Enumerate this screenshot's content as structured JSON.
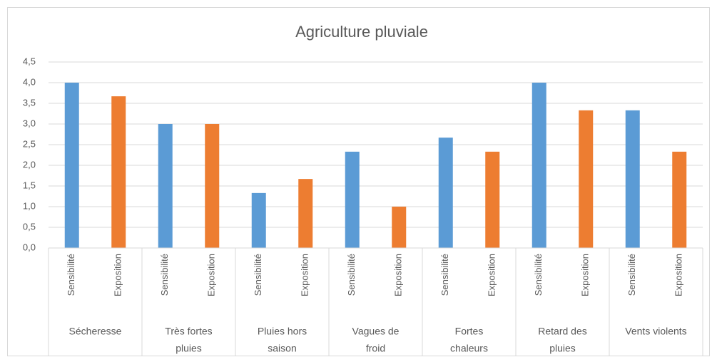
{
  "chart_data": {
    "type": "bar",
    "title": "Agriculture pluviale",
    "groups": [
      [
        "Sécheresse"
      ],
      [
        "Très fortes",
        "pluies"
      ],
      [
        "Pluies hors",
        "saison"
      ],
      [
        "Vagues de",
        "froid"
      ],
      [
        "Fortes",
        "chaleurs"
      ],
      [
        "Retard des",
        "pluies"
      ],
      [
        "Vents violents"
      ]
    ],
    "series": [
      {
        "name": "Sensibilité",
        "color": "#5b9bd5",
        "values": [
          4,
          3,
          1.33,
          2.33,
          2.67,
          4,
          3.33
        ]
      },
      {
        "name": "Exposition",
        "color": "#ed7d31",
        "values": [
          3.67,
          3,
          1.67,
          1,
          2.33,
          3.33,
          2.33
        ]
      }
    ],
    "ylim": [
      0,
      4.5
    ],
    "yticks": [
      {
        "value": 0,
        "label": "0,0"
      },
      {
        "value": 0.5,
        "label": "0,5"
      },
      {
        "value": 1,
        "label": "1,0"
      },
      {
        "value": 1.5,
        "label": "1,5"
      },
      {
        "value": 2,
        "label": "2,0"
      },
      {
        "value": 2.5,
        "label": "2,5"
      },
      {
        "value": 3,
        "label": "3,0"
      },
      {
        "value": 3.5,
        "label": "3,5"
      },
      {
        "value": 4,
        "label": "4,0"
      },
      {
        "value": 4.5,
        "label": "4,5"
      }
    ],
    "grid": true
  }
}
